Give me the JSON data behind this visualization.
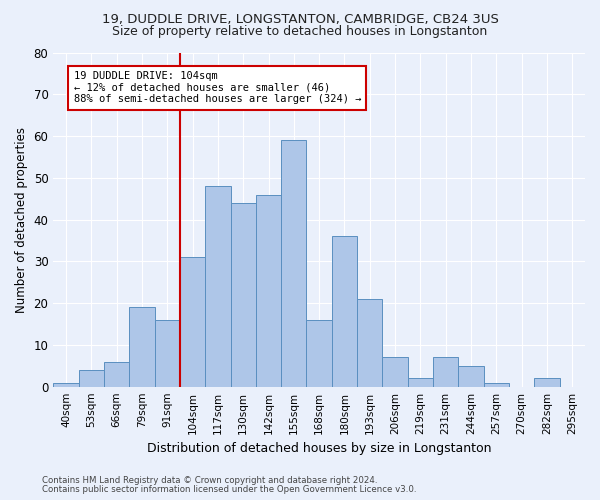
{
  "title1": "19, DUDDLE DRIVE, LONGSTANTON, CAMBRIDGE, CB24 3US",
  "title2": "Size of property relative to detached houses in Longstanton",
  "xlabel": "Distribution of detached houses by size in Longstanton",
  "ylabel": "Number of detached properties",
  "footnote1": "Contains HM Land Registry data © Crown copyright and database right 2024.",
  "footnote2": "Contains public sector information licensed under the Open Government Licence v3.0.",
  "bar_labels": [
    "40sqm",
    "53sqm",
    "66sqm",
    "79sqm",
    "91sqm",
    "104sqm",
    "117sqm",
    "130sqm",
    "142sqm",
    "155sqm",
    "168sqm",
    "180sqm",
    "193sqm",
    "206sqm",
    "219sqm",
    "231sqm",
    "244sqm",
    "257sqm",
    "270sqm",
    "282sqm",
    "295sqm"
  ],
  "bar_values": [
    1,
    4,
    6,
    19,
    16,
    31,
    48,
    44,
    46,
    59,
    16,
    36,
    21,
    7,
    2,
    7,
    5,
    1,
    0,
    2,
    0
  ],
  "bar_color": "#aec6e8",
  "bar_edge_color": "#5a8fc0",
  "vline_index": 5,
  "vline_color": "#cc0000",
  "annotation_line1": "19 DUDDLE DRIVE: 104sqm",
  "annotation_line2": "← 12% of detached houses are smaller (46)",
  "annotation_line3": "88% of semi-detached houses are larger (324) →",
  "annotation_box_color": "#ffffff",
  "annotation_box_edge": "#cc0000",
  "ylim": [
    0,
    80
  ],
  "yticks": [
    0,
    10,
    20,
    30,
    40,
    50,
    60,
    70,
    80
  ],
  "bg_color": "#eaf0fb",
  "grid_color": "#ffffff",
  "title1_fontsize": 9.5,
  "title2_fontsize": 9
}
